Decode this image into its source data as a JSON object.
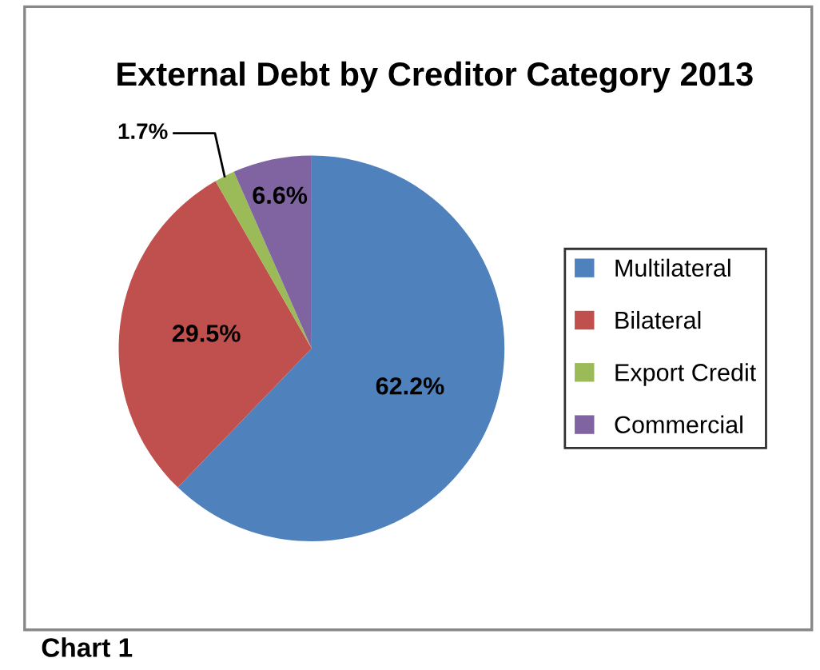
{
  "chart_data": {
    "type": "pie",
    "title": "External Debt by Creditor Category 2013",
    "categories": [
      "Multilateral",
      "Bilateral",
      "Export Credit",
      "Commercial"
    ],
    "values": [
      62.2,
      29.5,
      1.7,
      6.6
    ],
    "colors": [
      "#4f81bd",
      "#c0504d",
      "#9bbb59",
      "#8064a2"
    ],
    "value_labels": [
      "62.2%",
      "29.5%",
      "1.7%",
      "6.6%"
    ],
    "legend": "right",
    "annotations": [
      "Chart 1"
    ]
  }
}
